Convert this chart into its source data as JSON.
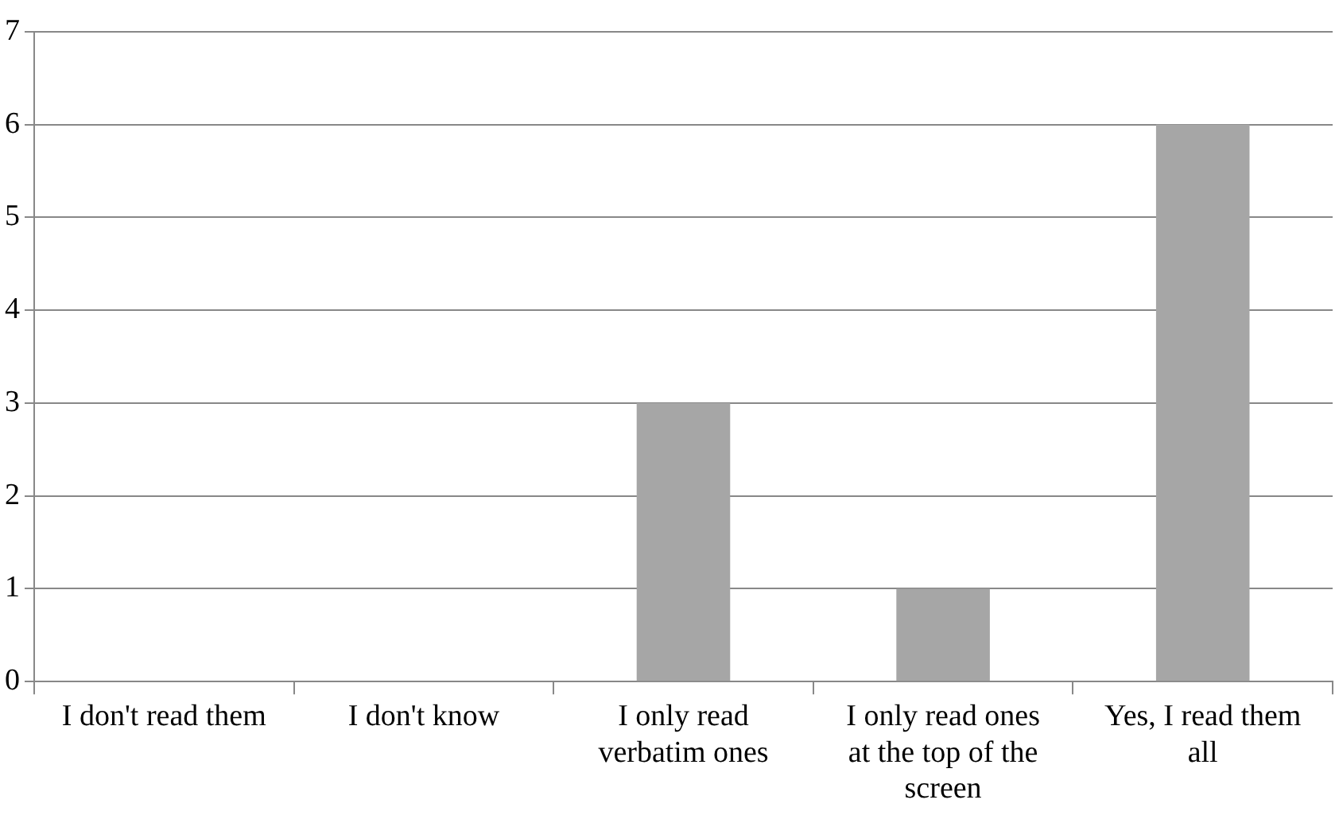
{
  "chart_data": {
    "type": "bar",
    "categories": [
      "I don't read them",
      "I don't know",
      "I only read verbatim ones",
      "I only read ones at the top of the screen",
      "Yes, I read them all"
    ],
    "values": [
      0,
      0,
      3,
      1,
      6
    ],
    "color": "#a6a6a6",
    "ylim": [
      0,
      7
    ],
    "yticks": [
      0,
      1,
      2,
      3,
      4,
      5,
      6,
      7
    ],
    "grid": "y",
    "legend": false
  }
}
